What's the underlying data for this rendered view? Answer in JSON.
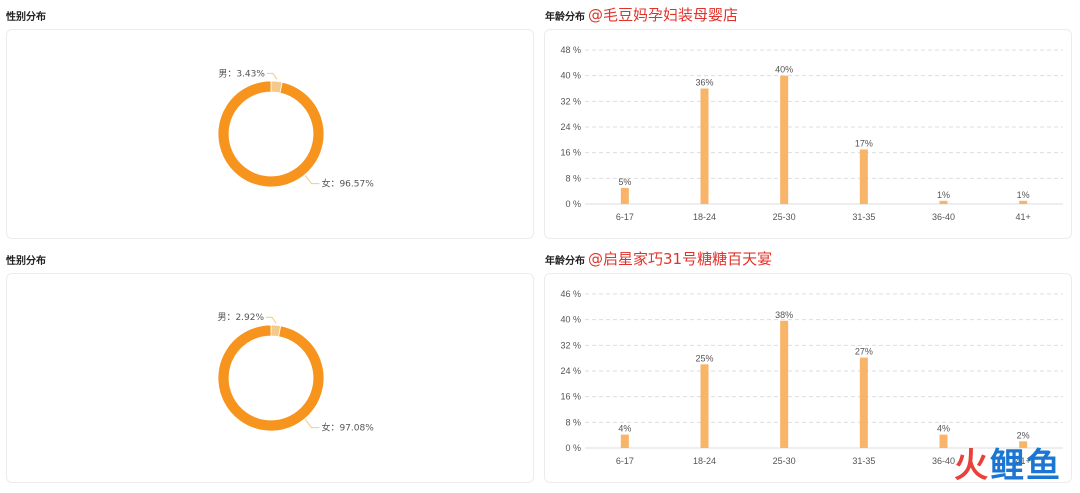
{
  "panels": [
    {
      "gender_title": "性别分布",
      "age_title": "年龄分布",
      "store": "@毛豆妈孕妇装母婴店",
      "gender": {
        "male_label": "男：3.43%",
        "female_label": "女：96.57%"
      }
    },
    {
      "gender_title": "性别分布",
      "age_title": "年龄分布",
      "store": "@启星家巧31号糖糖百天宴",
      "gender": {
        "male_label": "男：2.92%",
        "female_label": "女：97.08%"
      }
    }
  ],
  "watermark": {
    "a": "火",
    "b": "鲤鱼"
  },
  "colors": {
    "donut": "#f7941d",
    "donut_small": "#f5c98a",
    "bar": "#f8b469",
    "grid": "#dddddd"
  },
  "chart_data": [
    {
      "type": "pie",
      "categories": [
        "男",
        "女"
      ],
      "values": [
        3.43,
        96.57
      ]
    },
    {
      "type": "bar",
      "categories": [
        "6-17",
        "18-24",
        "25-30",
        "31-35",
        "36-40",
        "41+"
      ],
      "values": [
        5,
        36,
        40,
        17,
        1,
        1
      ],
      "data_labels": [
        "5%",
        "36%",
        "40%",
        "17%",
        "1%",
        "1%"
      ],
      "yticks": [
        "0 %",
        "8 %",
        "16 %",
        "24 %",
        "32 %",
        "40 %",
        "48 %"
      ],
      "ylim": [
        0,
        48
      ],
      "grid": true
    },
    {
      "type": "pie",
      "categories": [
        "男",
        "女"
      ],
      "values": [
        2.92,
        97.08
      ]
    },
    {
      "type": "bar",
      "categories": [
        "6-17",
        "18-24",
        "25-30",
        "31-35",
        "36-40",
        "41+"
      ],
      "values": [
        4,
        25,
        38,
        27,
        4,
        2
      ],
      "data_labels": [
        "4%",
        "25%",
        "38%",
        "27%",
        "4%",
        "2%"
      ],
      "yticks": [
        "0 %",
        "8 %",
        "16 %",
        "24 %",
        "32 %",
        "40 %",
        "46 %"
      ],
      "ylim": [
        0,
        46
      ],
      "grid": true
    }
  ]
}
